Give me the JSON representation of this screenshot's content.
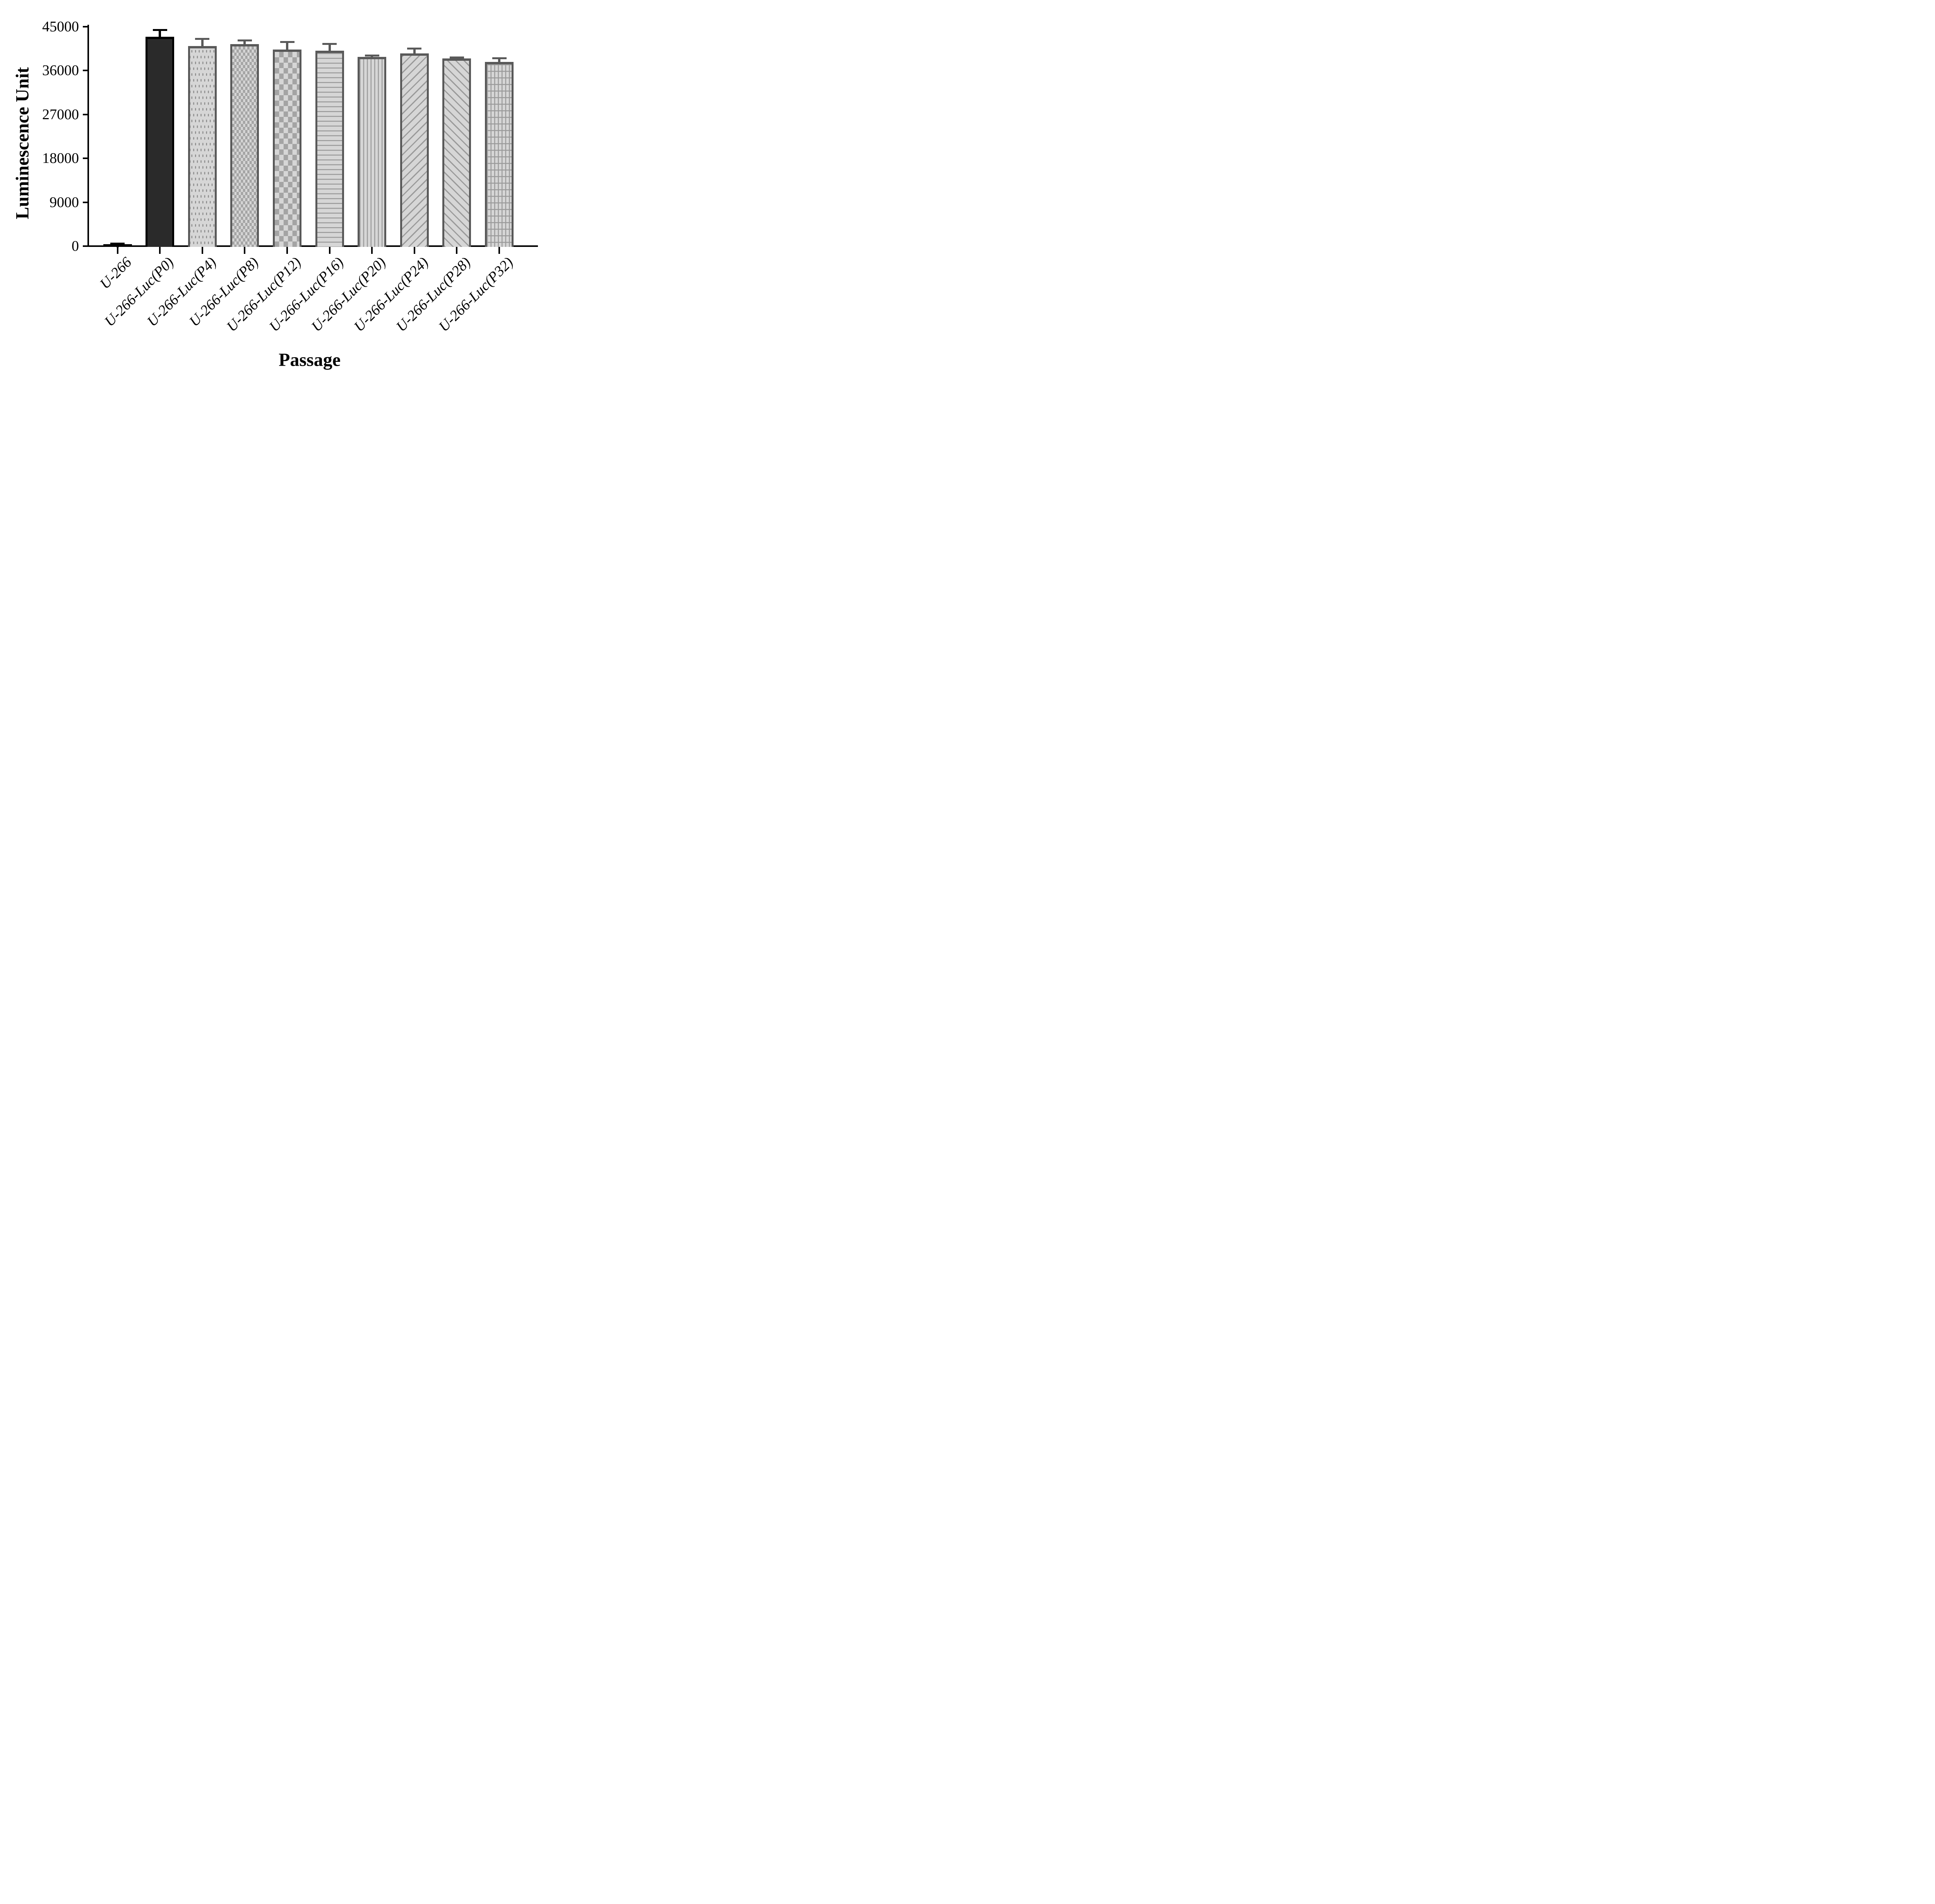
{
  "chart_data": {
    "type": "bar",
    "title": "",
    "xlabel": "Passage",
    "ylabel": "Luminescence Unit",
    "categories": [
      "U-266",
      "U-266-Luc(P0)",
      "U-266-Luc(P4)",
      "U-266-Luc(P8)",
      "U-266-Luc(P12)",
      "U-266-Luc(P16)",
      "U-266-Luc(P20)",
      "U-266-Luc(P24)",
      "U-266-Luc(P28)",
      "U-266-Luc(P32)"
    ],
    "values": [
      400,
      42900,
      41000,
      41400,
      40300,
      40100,
      38800,
      39500,
      38500,
      37800
    ],
    "errors": [
      150,
      1400,
      1500,
      800,
      1600,
      1400,
      300,
      1000,
      200,
      700
    ],
    "error_type": "SD, upper whisker only",
    "ylim": [
      0,
      45000
    ],
    "yticks": [
      0,
      9000,
      18000,
      27000,
      36000,
      45000
    ],
    "grid": false,
    "legend": "none",
    "bar_patterns": [
      "solid-black",
      "solid-dark",
      "dots",
      "checker-fine",
      "checker-coarse",
      "hlines",
      "vlines",
      "diag-up",
      "diag-down",
      "grid"
    ],
    "bar_outline_colors": [
      "#000000",
      "#000000",
      "#595959",
      "#595959",
      "#595959",
      "#595959",
      "#595959",
      "#595959",
      "#595959",
      "#595959"
    ],
    "colors": {
      "axis": "#000000",
      "bar_fill_light": "#d6d6d6",
      "pattern_gray": "#9a9a9a",
      "solid_bar_fill": "#2a2a2a"
    }
  }
}
